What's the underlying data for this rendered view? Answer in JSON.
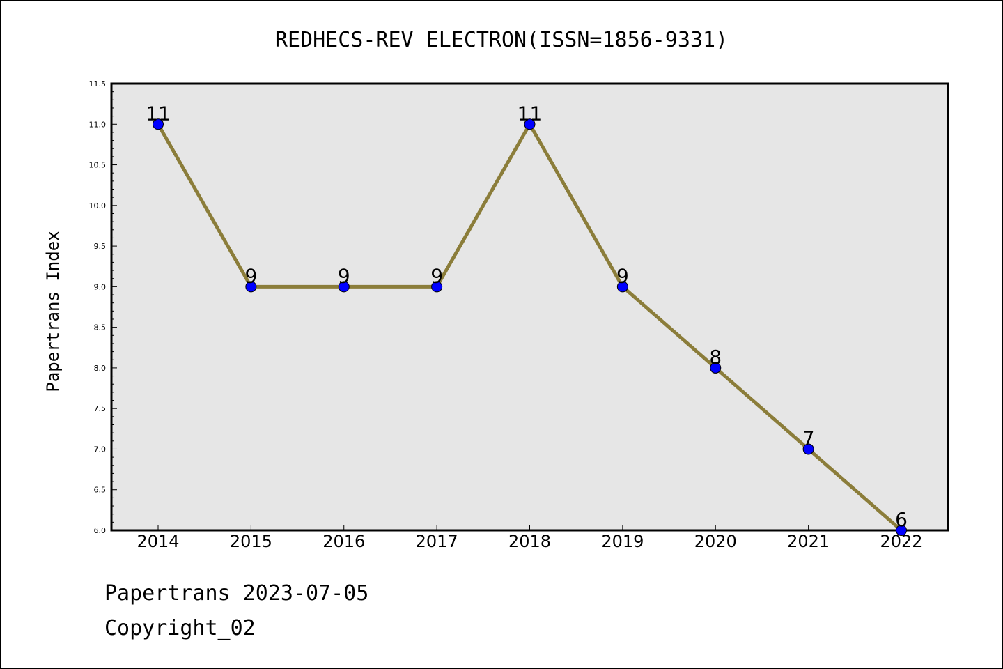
{
  "chart_data": {
    "type": "line",
    "title": "REDHECS-REV ELECTRON(ISSN=1856-9331)",
    "xlabel": "",
    "ylabel": "Papertrans Index",
    "categories": [
      "2014",
      "2015",
      "2016",
      "2017",
      "2018",
      "2019",
      "2020",
      "2021",
      "2022"
    ],
    "series": [
      {
        "values": [
          11,
          9,
          9,
          9,
          11,
          9,
          8,
          7,
          6
        ]
      }
    ],
    "data_labels": [
      "11",
      "9",
      "9",
      "9",
      "11",
      "9",
      "8",
      "7",
      "6"
    ],
    "ylim": [
      6.0,
      11.5
    ],
    "yticks": [
      "6.0",
      "6.5",
      "7.0",
      "7.5",
      "8.0",
      "8.5",
      "9.0",
      "9.5",
      "10.0",
      "10.5",
      "11.0",
      "11.5"
    ],
    "grid": false,
    "legend": "none",
    "colors": {
      "line": "#8b7d3a",
      "marker": "#0000ff",
      "plot_background": "#e6e6e6"
    }
  },
  "footer": {
    "line1": "Papertrans 2023-07-05",
    "line2": "Copyright_02"
  }
}
